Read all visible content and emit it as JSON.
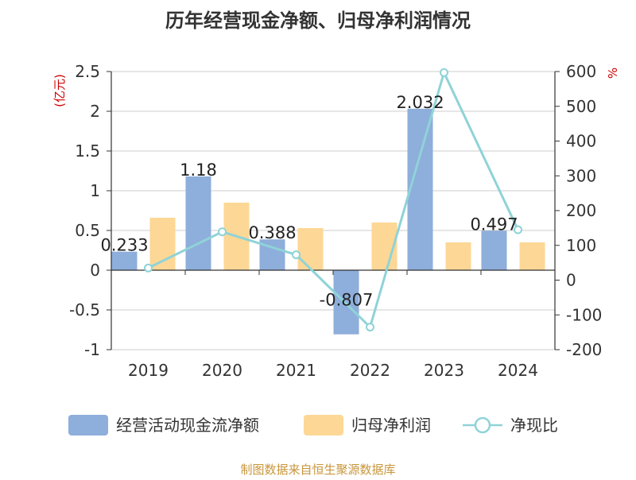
{
  "chart_data": {
    "type": "bar",
    "title": "历年经营现金净额、归母净利润情况",
    "categories": [
      "2019",
      "2020",
      "2021",
      "2022",
      "2023",
      "2024"
    ],
    "y_left": {
      "label": "(亿元)",
      "ylim": [
        -1,
        2.5
      ],
      "ticks": [
        -1,
        -0.5,
        0,
        0.5,
        1,
        1.5,
        2,
        2.5
      ]
    },
    "y_right": {
      "label": "%",
      "ylim": [
        -200,
        600
      ],
      "ticks": [
        -200,
        -100,
        0,
        100,
        200,
        300,
        400,
        500,
        600
      ]
    },
    "series": [
      {
        "name": "经营活动现金流净额",
        "type": "bar",
        "axis": "left",
        "color": "#8eaedb",
        "values": [
          0.233,
          1.18,
          0.388,
          -0.807,
          2.032,
          0.497
        ],
        "labels": [
          "0.233",
          "1.18",
          "0.388",
          "-0.807",
          "2.032",
          "0.497"
        ]
      },
      {
        "name": "归母净利润",
        "type": "bar",
        "axis": "left",
        "color": "#fdd795",
        "values": [
          0.66,
          0.85,
          0.53,
          0.6,
          0.35,
          0.35
        ]
      },
      {
        "name": "净现比",
        "type": "line",
        "axis": "right",
        "color": "#8fd3d8",
        "values": [
          35,
          139,
          73,
          -135,
          597,
          145
        ]
      }
    ],
    "grid": true,
    "legend": "bottom"
  },
  "footer": {
    "source": "制图数据来自恒生聚源数据库"
  }
}
